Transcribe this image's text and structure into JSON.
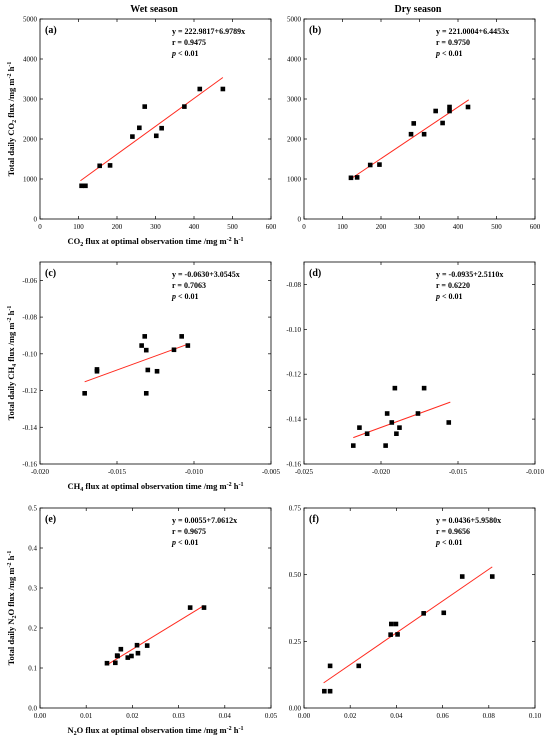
{
  "titles": {
    "left": "Wet season",
    "right": "Dry season"
  },
  "chart_data": [
    {
      "type": "scatter",
      "panel_label": "(a)",
      "xlabel": {
        "pre": "CO",
        "sub": "2",
        "post": " flux at optimal observation time /mg m",
        "sup2": "-2",
        "tail": " h",
        "sup3": "-1"
      },
      "ylabel": {
        "pre": "Total daily CO",
        "sub": "2",
        "post": " flux /mg m",
        "sup2": "-2",
        "tail": " h",
        "sup3": "-1"
      },
      "xlim": [
        0,
        600
      ],
      "ylim": [
        0,
        5000
      ],
      "xticks": [
        "0",
        "100",
        "200",
        "300",
        "400",
        "500",
        "600"
      ],
      "yticks": [
        "0",
        "1000",
        "2000",
        "3000",
        "4000",
        "5000"
      ],
      "equation": "y = 222.9817+6.9789x",
      "r_text": "r = 0.9475",
      "p_text": "< 0.01",
      "fit": {
        "intercept": 222.9817,
        "slope": 6.9789,
        "x_range": [
          105,
          475
        ]
      },
      "points": [
        [
          108,
          830
        ],
        [
          118,
          830
        ],
        [
          155,
          1330
        ],
        [
          182,
          1340
        ],
        [
          240,
          2060
        ],
        [
          258,
          2280
        ],
        [
          272,
          2810
        ],
        [
          302,
          2080
        ],
        [
          316,
          2270
        ],
        [
          375,
          2810
        ],
        [
          415,
          3250
        ],
        [
          475,
          3250
        ]
      ]
    },
    {
      "type": "scatter",
      "panel_label": "(b)",
      "xlabel": {
        "pre": "",
        "sub": "",
        "post": "",
        "sup2": "",
        "tail": "",
        "sup3": ""
      },
      "ylabel": {
        "pre": "",
        "sub": "",
        "post": "",
        "sup2": "",
        "tail": "",
        "sup3": ""
      },
      "xlim": [
        0,
        600
      ],
      "ylim": [
        0,
        5000
      ],
      "xticks": [
        "0",
        "100",
        "200",
        "300",
        "400",
        "500",
        "600"
      ],
      "yticks": [
        "0",
        "1000",
        "2000",
        "3000",
        "4000",
        "5000"
      ],
      "equation": "y = 221.0004+6.4453x",
      "r_text": "r = 0.9750",
      "p_text": "< 0.01",
      "fit": {
        "intercept": 221.0004,
        "slope": 6.4453,
        "x_range": [
          118,
          428
        ]
      },
      "points": [
        [
          122,
          1030
        ],
        [
          138,
          1040
        ],
        [
          172,
          1350
        ],
        [
          196,
          1360
        ],
        [
          278,
          2120
        ],
        [
          285,
          2390
        ],
        [
          312,
          2120
        ],
        [
          342,
          2700
        ],
        [
          360,
          2400
        ],
        [
          378,
          2800
        ],
        [
          378,
          2700
        ],
        [
          426,
          2800
        ]
      ]
    },
    {
      "type": "scatter",
      "panel_label": "(c)",
      "xlabel": {
        "pre": "CH",
        "sub": "4",
        "post": " flux at optimal observation time /mg m",
        "sup2": "-2",
        "tail": " h",
        "sup3": "-1"
      },
      "ylabel": {
        "pre": "Total daily CH",
        "sub": "4",
        "post": " flux /mg m",
        "sup2": "-2",
        "tail": " h",
        "sup3": "-1"
      },
      "xlim": [
        -0.02,
        -0.005
      ],
      "ylim": [
        -0.16,
        -0.05
      ],
      "xticks": [
        "-0.020",
        "-0.015",
        "-0.010",
        "-0.005"
      ],
      "yticks": [
        "-0.16",
        "-0.14",
        "-0.12",
        "-0.10",
        "-0.08",
        "-0.06"
      ],
      "equation": "y = -0.0630+3.0545x",
      "r_text": "r = 0.7063",
      "p_text": "< 0.01",
      "fit": {
        "intercept": -0.063,
        "slope": 3.0545,
        "x_range": [
          -0.0171,
          -0.0104
        ]
      },
      "points": [
        [
          -0.0171,
          -0.1215
        ],
        [
          -0.0163,
          -0.1095
        ],
        [
          -0.0163,
          -0.1085
        ],
        [
          -0.0134,
          -0.0955
        ],
        [
          -0.0132,
          -0.0905
        ],
        [
          -0.0131,
          -0.098
        ],
        [
          -0.013,
          -0.1088
        ],
        [
          -0.0131,
          -0.1215
        ],
        [
          -0.0124,
          -0.1095
        ],
        [
          -0.0113,
          -0.0978
        ],
        [
          -0.0108,
          -0.0905
        ],
        [
          -0.0104,
          -0.0955
        ]
      ]
    },
    {
      "type": "scatter",
      "panel_label": "(d)",
      "xlabel": {
        "pre": "",
        "sub": "",
        "post": "",
        "sup2": "",
        "tail": "",
        "sup3": ""
      },
      "ylabel": {
        "pre": "",
        "sub": "",
        "post": "",
        "sup2": "",
        "tail": "",
        "sup3": ""
      },
      "xlim": [
        -0.025,
        -0.01
      ],
      "ylim": [
        -0.16,
        -0.07
      ],
      "xticks": [
        "-0.025",
        "-0.020",
        "-0.015",
        "-0.010"
      ],
      "yticks": [
        "-0.16",
        "-0.14",
        "-0.12",
        "-0.10",
        "-0.08"
      ],
      "equation": "y = -0.0935+2.5110x",
      "r_text": "r = 0.6220",
      "p_text": "< 0.01",
      "fit": {
        "intercept": -0.0935,
        "slope": 2.511,
        "x_range": [
          -0.0218,
          -0.0155
        ]
      },
      "points": [
        [
          -0.0218,
          -0.1518
        ],
        [
          -0.0214,
          -0.1438
        ],
        [
          -0.0209,
          -0.1465
        ],
        [
          -0.0197,
          -0.1518
        ],
        [
          -0.0196,
          -0.1375
        ],
        [
          -0.0193,
          -0.1415
        ],
        [
          -0.0191,
          -0.1262
        ],
        [
          -0.019,
          -0.1465
        ],
        [
          -0.0188,
          -0.1438
        ],
        [
          -0.0176,
          -0.1375
        ],
        [
          -0.0172,
          -0.1262
        ],
        [
          -0.0156,
          -0.1415
        ]
      ]
    },
    {
      "type": "scatter",
      "panel_label": "(e)",
      "xlabel": {
        "pre": "N",
        "sub": "2",
        "post": "O flux at optimal observation time /mg m",
        "sup2": "-2",
        "tail": " h",
        "sup3": "-1"
      },
      "ylabel": {
        "pre": "Total daily N",
        "sub": "2",
        "post": "O flux /mg m",
        "sup2": "-2",
        "tail": " h",
        "sup3": "-1"
      },
      "xlim": [
        0,
        0.05
      ],
      "ylim": [
        0,
        0.5
      ],
      "xticks": [
        "0.00",
        "0.01",
        "0.02",
        "0.03",
        "0.04",
        "0.05"
      ],
      "yticks": [
        "0.0",
        "0.1",
        "0.2",
        "0.3",
        "0.4",
        "0.5"
      ],
      "equation": "y = 0.0055+7.0612x",
      "r_text": "r = 0.9675",
      "p_text": "< 0.01",
      "fit": {
        "intercept": 0.0055,
        "slope": 7.0612,
        "x_range": [
          0.0145,
          0.0355
        ]
      },
      "points": [
        [
          0.0145,
          0.112
        ],
        [
          0.0163,
          0.113
        ],
        [
          0.0167,
          0.131
        ],
        [
          0.0175,
          0.147
        ],
        [
          0.019,
          0.126
        ],
        [
          0.0198,
          0.13
        ],
        [
          0.021,
          0.157
        ],
        [
          0.0212,
          0.137
        ],
        [
          0.0232,
          0.156
        ],
        [
          0.0325,
          0.251
        ],
        [
          0.0355,
          0.251
        ],
        [
          0.0168,
          0.13
        ]
      ]
    },
    {
      "type": "scatter",
      "panel_label": "(f)",
      "xlabel": {
        "pre": "",
        "sub": "",
        "post": "",
        "sup2": "",
        "tail": "",
        "sup3": ""
      },
      "ylabel": {
        "pre": "",
        "sub": "",
        "post": "",
        "sup2": "",
        "tail": "",
        "sup3": ""
      },
      "xlim": [
        0,
        0.1
      ],
      "ylim": [
        0,
        0.75
      ],
      "xticks": [
        "0.00",
        "0.02",
        "0.04",
        "0.06",
        "0.08",
        "0.10"
      ],
      "yticks": [
        "0.00",
        "0.25",
        "0.50",
        "0.75"
      ],
      "equation": "y = 0.0436+5.9580x",
      "r_text": "r = 0.9656",
      "p_text": "< 0.01",
      "fit": {
        "intercept": 0.0436,
        "slope": 5.958,
        "x_range": [
          0.0085,
          0.0815
        ]
      },
      "points": [
        [
          0.0088,
          0.063
        ],
        [
          0.0113,
          0.063
        ],
        [
          0.0113,
          0.158
        ],
        [
          0.0237,
          0.158
        ],
        [
          0.0375,
          0.275
        ],
        [
          0.0378,
          0.315
        ],
        [
          0.0398,
          0.315
        ],
        [
          0.0405,
          0.276
        ],
        [
          0.0518,
          0.355
        ],
        [
          0.0605,
          0.357
        ],
        [
          0.0685,
          0.493
        ],
        [
          0.0815,
          0.493
        ]
      ]
    }
  ]
}
